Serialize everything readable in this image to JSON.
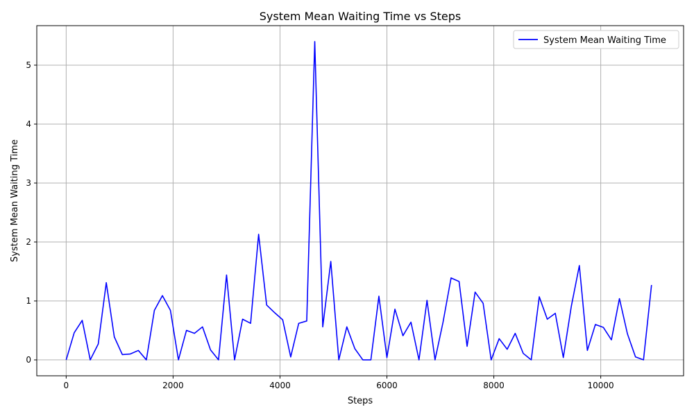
{
  "chart_data": {
    "type": "line",
    "title": "System Mean Waiting Time vs Steps",
    "xlabel": "Steps",
    "ylabel": "System Mean Waiting Time",
    "xlim": [
      -550,
      11550
    ],
    "ylim": [
      -0.27,
      5.67
    ],
    "xticks": [
      0,
      2000,
      4000,
      6000,
      8000,
      10000
    ],
    "yticks": [
      0,
      1,
      2,
      3,
      4,
      5
    ],
    "grid": true,
    "legend_position": "top-right",
    "series": [
      {
        "name": "System Mean Waiting Time",
        "color": "#0000ff",
        "x": [
          0,
          150,
          300,
          450,
          600,
          750,
          900,
          1050,
          1200,
          1350,
          1500,
          1650,
          1800,
          1950,
          2100,
          2250,
          2400,
          2550,
          2700,
          2850,
          3000,
          3150,
          3300,
          3450,
          3600,
          3750,
          3900,
          4050,
          4200,
          4350,
          4500,
          4650,
          4800,
          4950,
          5100,
          5250,
          5400,
          5550,
          5700,
          5850,
          6000,
          6150,
          6300,
          6450,
          6600,
          6750,
          6900,
          7050,
          7200,
          7350,
          7500,
          7650,
          7800,
          7950,
          8100,
          8250,
          8400,
          8550,
          8700,
          8850,
          9000,
          9150,
          9300,
          9450,
          9600,
          9750,
          9900,
          10050,
          10200,
          10350,
          10500,
          10650,
          10800,
          10950
        ],
        "y": [
          0,
          0.46,
          0.67,
          0,
          0.27,
          1.31,
          0.39,
          0.09,
          0.1,
          0.16,
          0,
          0.84,
          1.09,
          0.84,
          0,
          0.5,
          0.45,
          0.56,
          0.17,
          0,
          1.44,
          0,
          0.69,
          0.62,
          2.13,
          0.93,
          0.8,
          0.68,
          0.05,
          0.62,
          0.66,
          5.4,
          0.56,
          1.67,
          0,
          0.56,
          0.19,
          0,
          0,
          1.08,
          0.04,
          0.86,
          0.41,
          0.64,
          0,
          1.01,
          0,
          0.64,
          1.39,
          1.33,
          0.23,
          1.15,
          0.96,
          0,
          0.36,
          0.18,
          0.45,
          0.11,
          0,
          1.07,
          0.69,
          0.79,
          0.04,
          0.91,
          1.6,
          0.16,
          0.6,
          0.55,
          0.34,
          1.04,
          0.44,
          0.05,
          0,
          1.27
        ]
      }
    ]
  }
}
